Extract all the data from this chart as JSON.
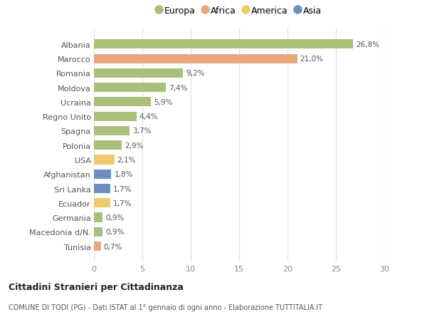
{
  "countries": [
    "Albania",
    "Marocco",
    "Romania",
    "Moldova",
    "Ucraina",
    "Regno Unito",
    "Spagna",
    "Polonia",
    "USA",
    "Afghanistan",
    "Sri Lanka",
    "Ecuador",
    "Germania",
    "Macedonia d/N.",
    "Tunisia"
  ],
  "values": [
    26.8,
    21.0,
    9.2,
    7.4,
    5.9,
    4.4,
    3.7,
    2.9,
    2.1,
    1.8,
    1.7,
    1.7,
    0.9,
    0.9,
    0.7
  ],
  "continents": [
    "Europa",
    "Africa",
    "Europa",
    "Europa",
    "Europa",
    "Europa",
    "Europa",
    "Europa",
    "America",
    "Asia",
    "Asia",
    "America",
    "Europa",
    "Europa",
    "Africa"
  ],
  "colors": {
    "Europa": "#a8c07a",
    "Africa": "#e8a87c",
    "America": "#f0c96e",
    "Asia": "#6b8fbf"
  },
  "legend_order": [
    "Europa",
    "Africa",
    "America",
    "Asia"
  ],
  "title": "Cittadini Stranieri per Cittadinanza",
  "subtitle": "COMUNE DI TODI (PG) - Dati ISTAT al 1° gennaio di ogni anno - Elaborazione TUTTITALIA.IT",
  "xlim": [
    0,
    30
  ],
  "xticks": [
    0,
    5,
    10,
    15,
    20,
    25,
    30
  ],
  "bg_color": "#ffffff",
  "grid_color": "#e0e0e0"
}
